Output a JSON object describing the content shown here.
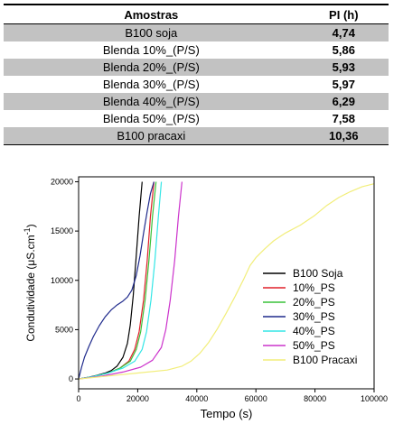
{
  "table": {
    "headers": [
      "Amostras",
      "PI (h)"
    ],
    "rows": [
      {
        "sample": "B100 soja",
        "pi": "4,74"
      },
      {
        "sample": "Blenda 10%_(P/S)",
        "pi": "5,86"
      },
      {
        "sample": "Blenda 20%_(P/S)",
        "pi": "5,93"
      },
      {
        "sample": "Blenda 30%_(P/S)",
        "pi": "5,97"
      },
      {
        "sample": "Blenda 40%_(P/S)",
        "pi": "6,29"
      },
      {
        "sample": "Blenda 50%_(P/S)",
        "pi": "7,58"
      },
      {
        "sample": "B100 pracaxi",
        "pi": "10,36"
      }
    ],
    "shade_color": "#c2c2c2"
  },
  "chart_data": {
    "type": "line",
    "xlabel": "Tempo (s)",
    "ylabel": "Condutividade (μS.cm",
    "ylabel_superscript": "-1",
    "ylabel_suffix": ")",
    "xlim": [
      0,
      100000
    ],
    "ylim": [
      -1000,
      20500
    ],
    "xticks": [
      0,
      20000,
      40000,
      60000,
      80000,
      100000
    ],
    "xtick_labels": [
      "0",
      "20000",
      "40000",
      "60000",
      "80000",
      "100000"
    ],
    "yticks": [
      0,
      5000,
      10000,
      15000,
      20000
    ],
    "ytick_labels": [
      "0",
      "5000",
      "10000",
      "15000",
      "20000"
    ],
    "grid": false,
    "legend_position": "center-right",
    "series": [
      {
        "name": "B100 Soja",
        "color": "#000000",
        "x": [
          0,
          3000,
          6000,
          9000,
          11000,
          13000,
          15000,
          16500,
          17500,
          18500,
          19500,
          20500,
          21500
        ],
        "y": [
          0,
          150,
          350,
          600,
          850,
          1300,
          2200,
          3600,
          5500,
          8500,
          12500,
          16500,
          20000
        ]
      },
      {
        "name": "10%_PS",
        "color": "#e0202a",
        "x": [
          0,
          5000,
          10000,
          14000,
          17000,
          19000,
          20500,
          22000,
          23200,
          24300,
          25500
        ],
        "y": [
          0,
          250,
          600,
          1100,
          1800,
          3000,
          4800,
          8000,
          12000,
          16500,
          20000
        ]
      },
      {
        "name": "20%_PS",
        "color": "#38c238",
        "x": [
          0,
          5000,
          10000,
          14000,
          17500,
          19500,
          21000,
          22500,
          23800,
          25000,
          26200
        ],
        "y": [
          0,
          250,
          600,
          1100,
          1800,
          3000,
          4800,
          8000,
          12000,
          16500,
          20000
        ]
      },
      {
        "name": "30%_PS",
        "color": "#1f2a8c",
        "x": [
          0,
          1000,
          2000,
          3500,
          5000,
          7000,
          9000,
          11000,
          13000,
          15000,
          16500,
          18000,
          19500,
          20800,
          22000,
          23200,
          24300,
          25500
        ],
        "y": [
          0,
          1200,
          2200,
          3300,
          4300,
          5400,
          6300,
          7000,
          7500,
          7900,
          8300,
          9000,
          10500,
          12500,
          14800,
          17000,
          18800,
          20000
        ]
      },
      {
        "name": "40%_PS",
        "color": "#33e6e6",
        "x": [
          0,
          5000,
          10000,
          15000,
          19000,
          21500,
          23000,
          24500,
          25800,
          27000,
          28000
        ],
        "y": [
          0,
          250,
          600,
          1100,
          1800,
          3000,
          4800,
          8000,
          12000,
          16500,
          20000
        ]
      },
      {
        "name": "50%_PS",
        "color": "#cc33cc",
        "x": [
          0,
          8000,
          15000,
          21000,
          25000,
          28000,
          29500,
          31000,
          32500,
          33800,
          35000
        ],
        "y": [
          0,
          300,
          700,
          1200,
          1900,
          3200,
          5000,
          8000,
          12000,
          16500,
          20000
        ]
      },
      {
        "name": "B100 Pracaxi",
        "color": "#f2ee7a",
        "x": [
          0,
          10000,
          20000,
          30000,
          35000,
          38000,
          41000,
          44000,
          47000,
          50000,
          53000,
          56000,
          58000,
          60000,
          63000,
          66000,
          70000,
          75000,
          80000,
          84000,
          88000,
          92000,
          96000,
          100000
        ],
        "y": [
          0,
          300,
          600,
          900,
          1300,
          1800,
          2600,
          3700,
          5100,
          6700,
          8400,
          10200,
          11500,
          12300,
          13200,
          14000,
          14800,
          15600,
          16600,
          17600,
          18400,
          19000,
          19500,
          19800
        ]
      }
    ]
  }
}
